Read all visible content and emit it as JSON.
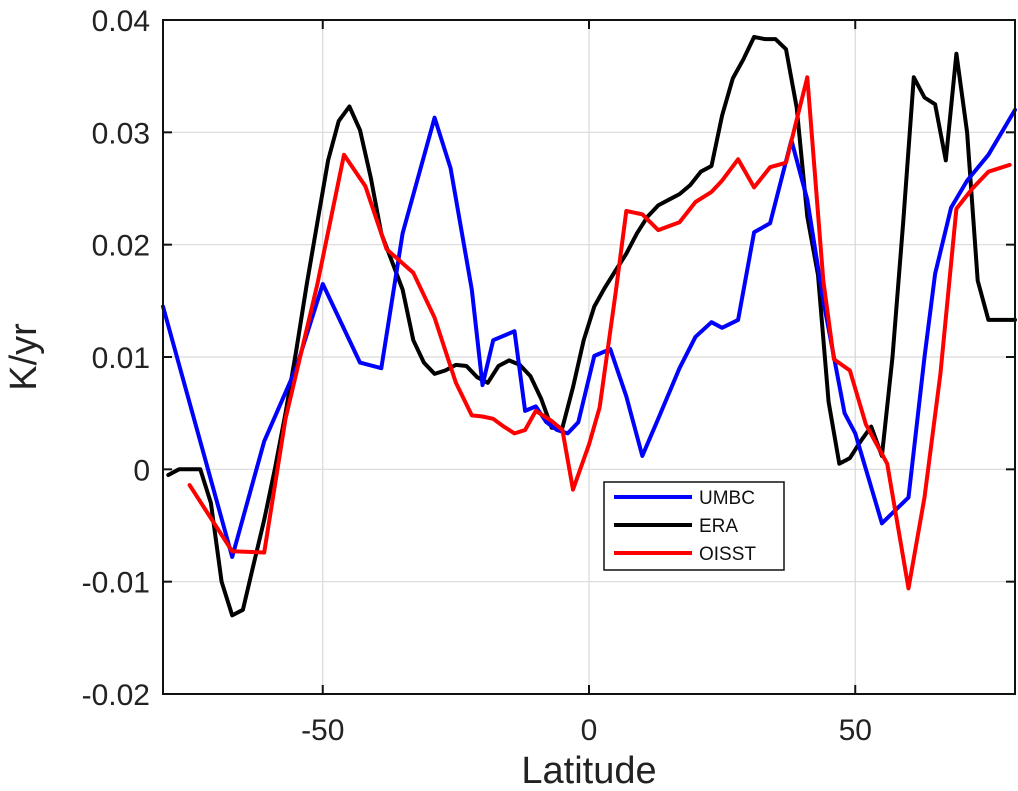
{
  "chart_data": {
    "type": "line",
    "title": "",
    "xlabel": "Latitude",
    "ylabel": "K/yr",
    "xlim": [
      -80,
      80
    ],
    "ylim": [
      -0.02,
      0.04
    ],
    "xticks": [
      -50,
      0,
      50
    ],
    "xtick_labels": [
      "-50",
      "0",
      "50"
    ],
    "yticks": [
      -0.02,
      -0.01,
      0,
      0.01,
      0.02,
      0.03,
      0.04
    ],
    "ytick_labels": [
      "-0.02",
      "-0.01",
      "0",
      "0.01",
      "0.02",
      "0.03",
      "0.04"
    ],
    "grid": true,
    "legend_position": "center-right",
    "series": [
      {
        "name": "UMBC",
        "color": "#0000ff",
        "x": [
          -80,
          -67,
          -61,
          -55,
          -50,
          -43,
          -39,
          -35,
          -29,
          -26,
          -22,
          -20,
          -18,
          -14,
          -12,
          -10,
          -8,
          -6,
          -4,
          -2,
          1,
          4,
          7,
          10,
          13,
          17,
          20,
          23,
          25,
          28,
          31,
          34,
          38,
          41,
          44,
          48,
          50,
          55,
          60,
          63,
          65,
          68,
          71,
          75,
          80
        ],
        "y": [
          0.0145,
          -0.0078,
          0.0025,
          0.009,
          0.0165,
          0.0095,
          0.009,
          0.021,
          0.0313,
          0.0268,
          0.016,
          0.0075,
          0.0115,
          0.0123,
          0.0052,
          0.0056,
          0.0042,
          0.0035,
          0.0032,
          0.0042,
          0.0101,
          0.0107,
          0.0065,
          0.0012,
          0.0045,
          0.009,
          0.0118,
          0.0131,
          0.0126,
          0.0133,
          0.0211,
          0.0219,
          0.0293,
          0.024,
          0.015,
          0.005,
          0.0032,
          -0.0048,
          -0.0025,
          0.01,
          0.0174,
          0.0233,
          0.0257,
          0.028,
          0.032
        ]
      },
      {
        "name": "ERA",
        "color": "#000000",
        "x": [
          -79,
          -77,
          -75,
          -73,
          -71,
          -69,
          -67,
          -65,
          -63,
          -61,
          -59,
          -57,
          -55,
          -53,
          -51,
          -49,
          -47,
          -45,
          -43,
          -41,
          -39,
          -37,
          -35,
          -33,
          -31,
          -29,
          -27,
          -25,
          -23,
          -21,
          -19,
          -17,
          -15,
          -13,
          -11,
          -9,
          -7,
          -5,
          -3,
          -1,
          1,
          3,
          5,
          7,
          9,
          11,
          13,
          15,
          17,
          19,
          21,
          23,
          25,
          27,
          29,
          31,
          33,
          35,
          37,
          39,
          41,
          43,
          45,
          47,
          49,
          51,
          53,
          55,
          57,
          59,
          61,
          63,
          65,
          67,
          69,
          71,
          73,
          75,
          77,
          79,
          80
        ],
        "y": [
          -0.0005,
          0.0,
          0.0,
          0.0,
          -0.003,
          -0.01,
          -0.013,
          -0.0125,
          -0.0085,
          -0.0045,
          0.0,
          0.005,
          0.0105,
          0.0165,
          0.022,
          0.0275,
          0.031,
          0.0323,
          0.0302,
          0.026,
          0.021,
          0.0185,
          0.016,
          0.0115,
          0.0095,
          0.0085,
          0.0088,
          0.0093,
          0.0092,
          0.0082,
          0.0077,
          0.0092,
          0.0097,
          0.0093,
          0.0083,
          0.0063,
          0.0037,
          0.0037,
          0.0073,
          0.0115,
          0.0145,
          0.0162,
          0.0177,
          0.0192,
          0.021,
          0.0225,
          0.0235,
          0.024,
          0.0245,
          0.0253,
          0.0265,
          0.027,
          0.0315,
          0.0348,
          0.0365,
          0.0385,
          0.0383,
          0.0383,
          0.0374,
          0.0322,
          0.0225,
          0.0173,
          0.006,
          0.0005,
          0.001,
          0.0025,
          0.0038,
          0.0012,
          0.01,
          0.022,
          0.0349,
          0.0331,
          0.0325,
          0.0275,
          0.037,
          0.03,
          0.0168,
          0.0133,
          0.0133,
          0.0133,
          0.0133
        ]
      },
      {
        "name": "OISST",
        "color": "#ff0000",
        "x": [
          -75,
          -67,
          -61,
          -57,
          -53,
          -51,
          -46,
          -42,
          -38,
          -33,
          -29,
          -25,
          -22,
          -20,
          -18,
          -16,
          -14,
          -12,
          -10,
          -7,
          -5,
          -3,
          0,
          2,
          5,
          7,
          10,
          13,
          17,
          20,
          23,
          25,
          28,
          31,
          34,
          37,
          41,
          44,
          46,
          49,
          52,
          56,
          60,
          63,
          66,
          69,
          72,
          75,
          79
        ],
        "y": [
          -0.0014,
          -0.0073,
          -0.0074,
          0.0045,
          0.0125,
          0.0165,
          0.028,
          0.0252,
          0.0196,
          0.0175,
          0.0135,
          0.0077,
          0.0048,
          0.0047,
          0.0045,
          0.0038,
          0.0032,
          0.0035,
          0.0052,
          0.0043,
          0.0035,
          -0.0018,
          0.0022,
          0.0055,
          0.0157,
          0.023,
          0.0227,
          0.0213,
          0.022,
          0.0238,
          0.0247,
          0.0257,
          0.0276,
          0.0251,
          0.0269,
          0.0273,
          0.0349,
          0.0168,
          0.0098,
          0.0088,
          0.004,
          0.0005,
          -0.0106,
          -0.0025,
          0.0085,
          0.0232,
          0.025,
          0.0265,
          0.0271
        ]
      }
    ]
  }
}
